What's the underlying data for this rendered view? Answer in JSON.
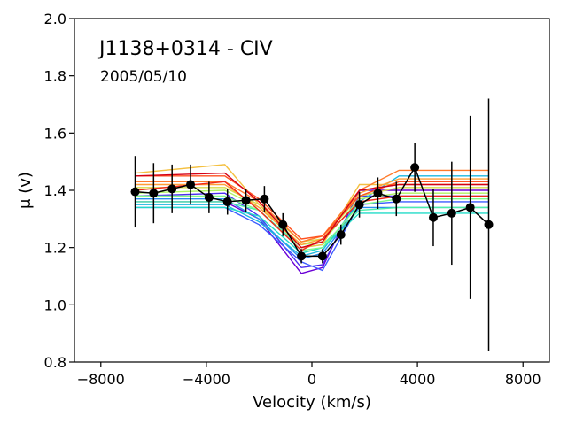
{
  "chart_data": {
    "type": "line",
    "title": "",
    "annotations": [
      "J1138+0314 - CIV",
      "2005/05/10"
    ],
    "xlabel": "Velocity (km/s)",
    "ylabel": "μ (v)",
    "xlim": [
      -9000,
      9000
    ],
    "ylim": [
      0.8,
      2.0
    ],
    "xticks": [
      -8000,
      -4000,
      0,
      4000,
      8000
    ],
    "xtick_labels": [
      "−8000",
      "−4000",
      "0",
      "4000",
      "8000"
    ],
    "yticks": [
      0.8,
      1.0,
      1.2,
      1.4,
      1.6,
      1.8,
      2.0
    ],
    "ytick_labels": [
      "0.8",
      "1.0",
      "1.2",
      "1.4",
      "1.6",
      "1.8",
      "2.0"
    ],
    "grid": false,
    "legend": "none",
    "model_x": [
      -6700,
      -3300,
      -2000,
      -400,
      400,
      1800,
      3300,
      6700
    ],
    "model_series": [
      {
        "color": "#6b00d6",
        "values": [
          1.36,
          1.36,
          1.3,
          1.11,
          1.13,
          1.4,
          1.4,
          1.4
        ]
      },
      {
        "color": "#4d2ef0",
        "values": [
          1.38,
          1.39,
          1.31,
          1.13,
          1.14,
          1.38,
          1.38,
          1.38
        ]
      },
      {
        "color": "#3b5bff",
        "values": [
          1.34,
          1.34,
          1.28,
          1.15,
          1.12,
          1.35,
          1.36,
          1.36
        ]
      },
      {
        "color": "#2b8cf0",
        "values": [
          1.37,
          1.37,
          1.3,
          1.16,
          1.18,
          1.34,
          1.34,
          1.34
        ]
      },
      {
        "color": "#1cb8e0",
        "values": [
          1.35,
          1.35,
          1.29,
          1.17,
          1.19,
          1.36,
          1.45,
          1.45
        ]
      },
      {
        "color": "#22dcc8",
        "values": [
          1.34,
          1.34,
          1.31,
          1.18,
          1.2,
          1.32,
          1.32,
          1.32
        ]
      },
      {
        "color": "#4cf0a8",
        "values": [
          1.36,
          1.36,
          1.33,
          1.2,
          1.21,
          1.33,
          1.34,
          1.34
        ]
      },
      {
        "color": "#7ffa8a",
        "values": [
          1.38,
          1.38,
          1.33,
          1.19,
          1.2,
          1.35,
          1.37,
          1.37
        ]
      },
      {
        "color": "#b0f464",
        "values": [
          1.39,
          1.4,
          1.34,
          1.21,
          1.22,
          1.37,
          1.39,
          1.39
        ]
      },
      {
        "color": "#d8dc4e",
        "values": [
          1.41,
          1.41,
          1.35,
          1.22,
          1.23,
          1.38,
          1.41,
          1.41
        ]
      },
      {
        "color": "#f4c040",
        "values": [
          1.46,
          1.49,
          1.35,
          1.2,
          1.21,
          1.42,
          1.42,
          1.42
        ]
      },
      {
        "color": "#ff9e36",
        "values": [
          1.42,
          1.42,
          1.34,
          1.21,
          1.23,
          1.39,
          1.44,
          1.44
        ]
      },
      {
        "color": "#ff7a2a",
        "values": [
          1.43,
          1.43,
          1.36,
          1.22,
          1.24,
          1.4,
          1.47,
          1.47
        ]
      },
      {
        "color": "#ff5220",
        "values": [
          1.45,
          1.45,
          1.37,
          1.23,
          1.24,
          1.38,
          1.43,
          1.43
        ]
      },
      {
        "color": "#f0281a",
        "values": [
          1.4,
          1.43,
          1.33,
          1.19,
          1.23,
          1.36,
          1.38,
          1.38
        ]
      },
      {
        "color": "#d40016",
        "values": [
          1.45,
          1.46,
          1.36,
          1.2,
          1.22,
          1.4,
          1.42,
          1.42
        ]
      }
    ],
    "observed": {
      "color": "#000000",
      "x": [
        -6700,
        -6000,
        -5300,
        -4600,
        -3900,
        -3200,
        -2500,
        -1800,
        -1100,
        -400,
        400,
        1100,
        1800,
        2500,
        3200,
        3900,
        4600,
        5300,
        6000,
        6700
      ],
      "y": [
        1.395,
        1.39,
        1.405,
        1.42,
        1.375,
        1.36,
        1.365,
        1.37,
        1.28,
        1.17,
        1.17,
        1.245,
        1.35,
        1.39,
        1.37,
        1.48,
        1.305,
        1.32,
        1.34,
        1.28
      ],
      "yerr": [
        0.125,
        0.105,
        0.085,
        0.07,
        0.055,
        0.045,
        0.04,
        0.045,
        0.04,
        0.025,
        0.025,
        0.035,
        0.045,
        0.055,
        0.06,
        0.085,
        0.1,
        0.18,
        0.32,
        0.44
      ]
    }
  }
}
